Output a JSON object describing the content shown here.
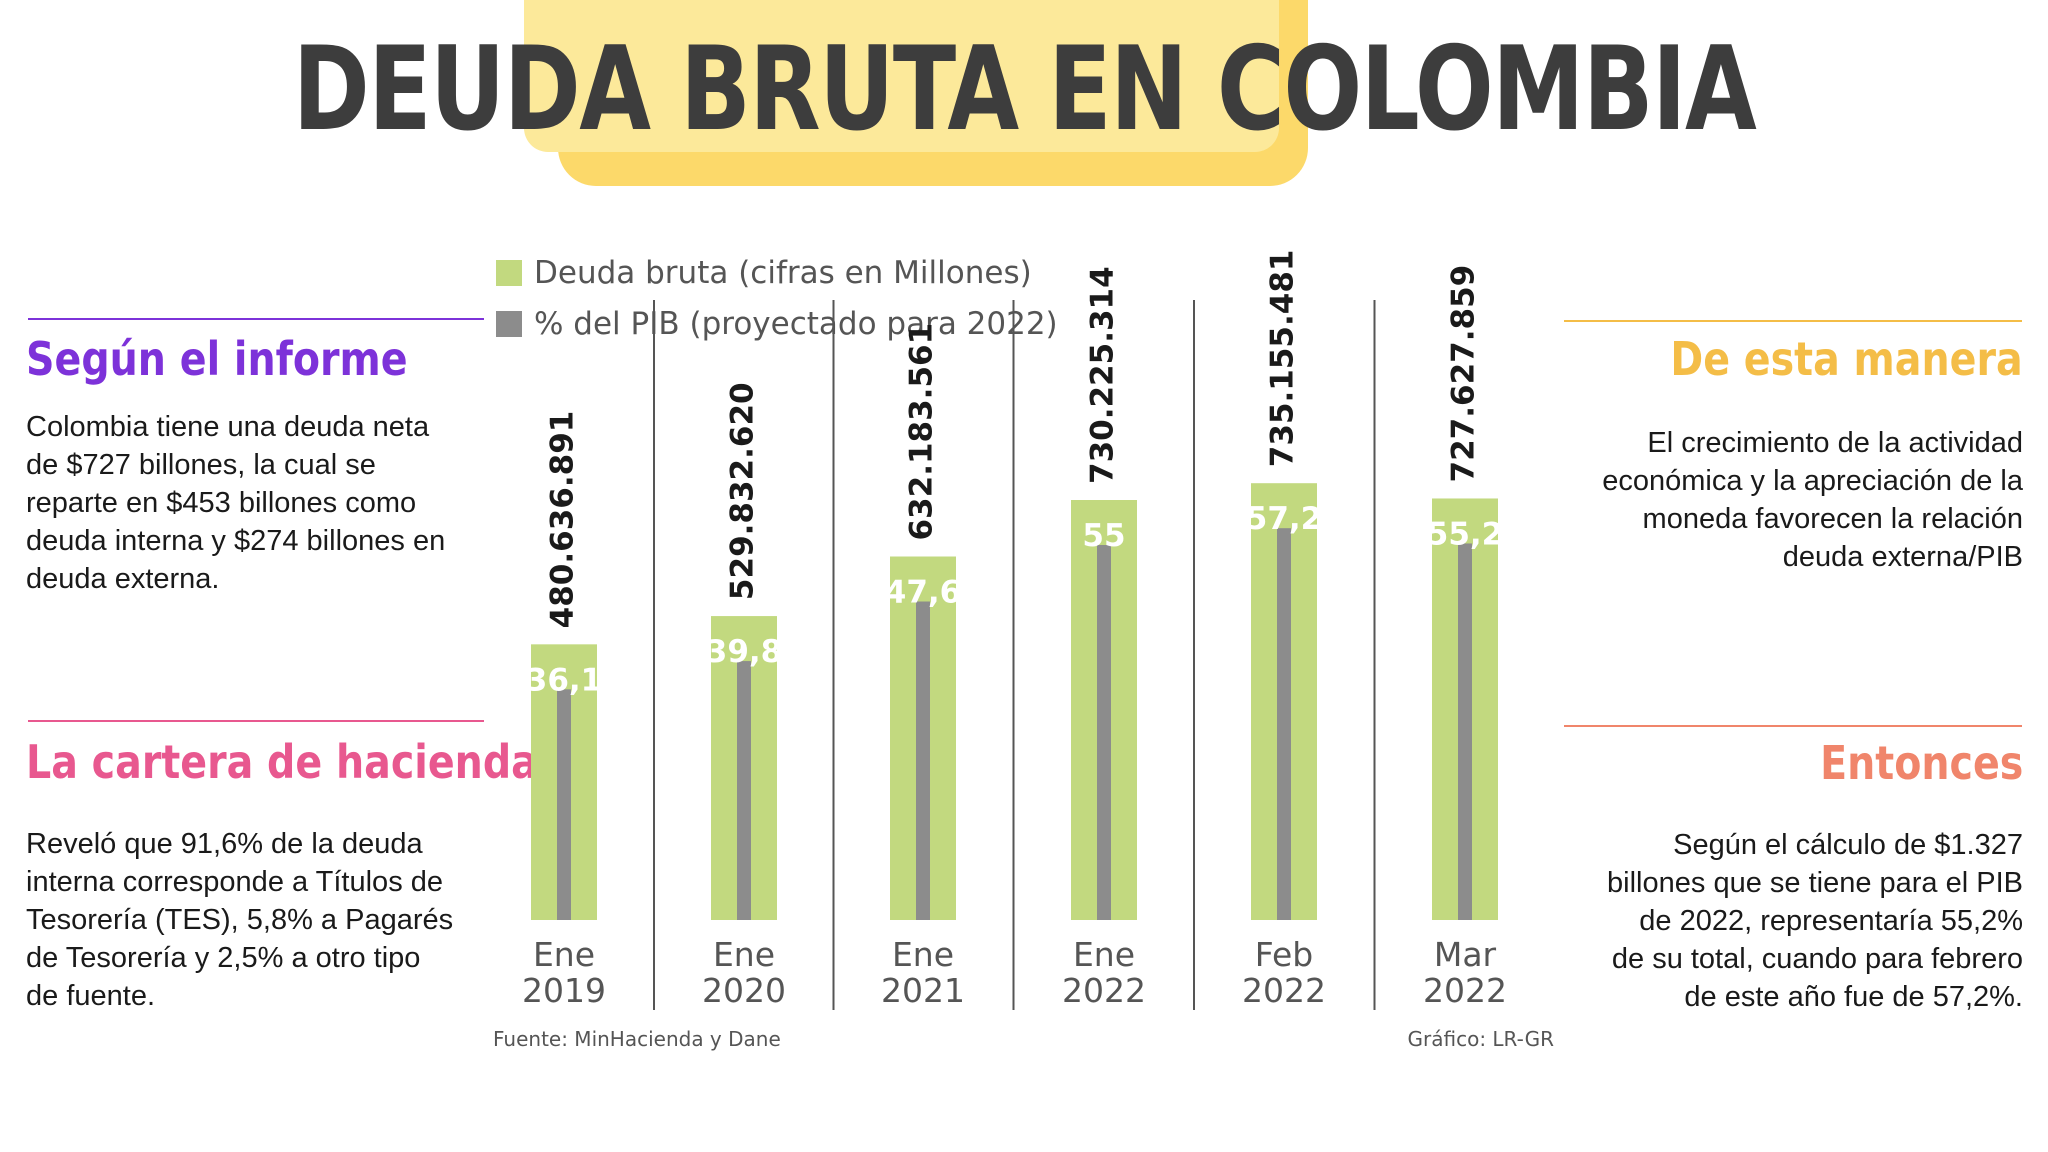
{
  "page": {
    "title": "DEUDA BRUTA EN COLOMBIA"
  },
  "colors": {
    "title_text": "#3d3d3d",
    "title_highlight": "#fcd96a",
    "bar_green": "#c2d97f",
    "bar_gray": "#8c8c8c",
    "purple": "#7d32d9",
    "pink": "#e8588f",
    "yellow": "#f4bd47",
    "salmon": "#f0856b"
  },
  "left_panel": {
    "section1": {
      "heading": "Según el informe",
      "text": "Colombia tiene una deuda neta de $727 billones, la cual se reparte en $453 billones como deuda interna y $274 billones en deuda externa."
    },
    "section2": {
      "heading": "La cartera de hacienda",
      "text": "Reveló que 91,6% de la deuda interna corresponde a Títulos de Tesorería (TES), 5,8% a Pagarés de Tesorería y 2,5% a otro tipo de fuente."
    }
  },
  "right_panel": {
    "section1": {
      "heading": "De esta manera",
      "text": "El crecimiento de la actividad económica y la apreciación de la moneda favorecen la relación deuda externa/PIB"
    },
    "section2": {
      "heading": "Entonces",
      "text": "Según el cálculo de $1.327 billones que se tiene para el PIB de 2022, representaría 55,2% de su total, cuando para febrero de este año fue de 57,2%."
    }
  },
  "chart_data": {
    "type": "bar",
    "categories": [
      [
        "Ene",
        "2019"
      ],
      [
        "Ene",
        "2020"
      ],
      [
        "Ene",
        "2021"
      ],
      [
        "Ene",
        "2022"
      ],
      [
        "Feb",
        "2022"
      ],
      [
        "Mar",
        "2022"
      ]
    ],
    "series": [
      {
        "name": "Deuda bruta (cifras en Millones)",
        "values": [
          480636891,
          529832620,
          632183561,
          730225314,
          735155481,
          727627859
        ],
        "labels": [
          "480.636.891",
          "529.832.620",
          "632.183.561",
          "730.225.314",
          "735.155.481",
          "727.627.859"
        ],
        "color": "#c2d97f"
      },
      {
        "name": "% del PIB (proyectado para 2022)",
        "values": [
          36.1,
          39.8,
          47.6,
          55,
          57.2,
          55.2
        ],
        "labels": [
          "36,1",
          "39,8",
          "47,6",
          "55",
          "57,2",
          "55,2"
        ],
        "color": "#8c8c8c"
      }
    ],
    "source": "Fuente: MinHacienda y Dane",
    "credit": "Gráfico: LR-GR",
    "legend_position": "top-left",
    "grid": false
  }
}
